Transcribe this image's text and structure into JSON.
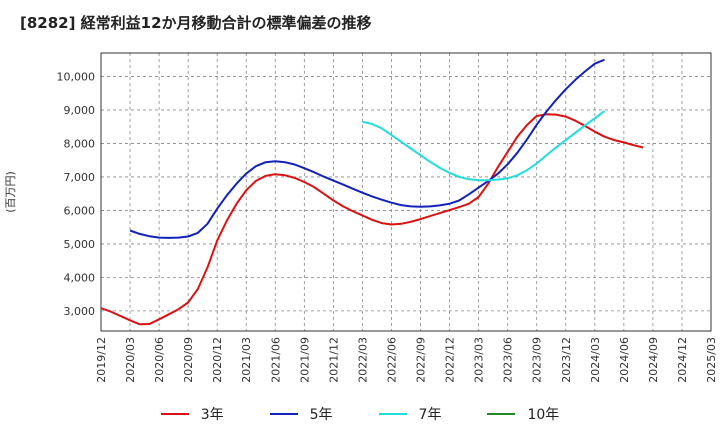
{
  "chart_data": {
    "type": "line",
    "title": "[8282]  経常利益12か月移動合計の標準偏差の推移",
    "ylabel": "(百万円)",
    "xlabel": "",
    "ylim": [
      2400,
      10700
    ],
    "yticks": [
      3000,
      4000,
      5000,
      6000,
      7000,
      8000,
      9000,
      10000
    ],
    "ytick_labels": [
      "3,000",
      "4,000",
      "5,000",
      "6,000",
      "7,000",
      "8,000",
      "9,000",
      "10,000"
    ],
    "xticks": [
      "2019/12",
      "2020/03",
      "2020/06",
      "2020/09",
      "2020/12",
      "2021/03",
      "2021/06",
      "2021/09",
      "2021/12",
      "2022/03",
      "2022/06",
      "2022/09",
      "2022/12",
      "2023/03",
      "2023/06",
      "2023/09",
      "2023/12",
      "2024/03",
      "2024/06",
      "2024/09",
      "2024/12",
      "2025/03"
    ],
    "grid": true,
    "legend_position": "bottom",
    "series": [
      {
        "name": "3年",
        "color": "#dd1111",
        "points": [
          [
            "2019/12",
            3080
          ],
          [
            "2020/01",
            2980
          ],
          [
            "2020/02",
            2850
          ],
          [
            "2020/03",
            2720
          ],
          [
            "2020/04",
            2600
          ],
          [
            "2020/05",
            2610
          ],
          [
            "2020/06",
            2750
          ],
          [
            "2020/07",
            2900
          ],
          [
            "2020/08",
            3050
          ],
          [
            "2020/09",
            3250
          ],
          [
            "2020/10",
            3650
          ],
          [
            "2020/11",
            4300
          ],
          [
            "2020/12",
            5100
          ],
          [
            "2021/01",
            5700
          ],
          [
            "2021/02",
            6200
          ],
          [
            "2021/03",
            6600
          ],
          [
            "2021/04",
            6880
          ],
          [
            "2021/05",
            7030
          ],
          [
            "2021/06",
            7080
          ],
          [
            "2021/07",
            7050
          ],
          [
            "2021/08",
            6970
          ],
          [
            "2021/09",
            6850
          ],
          [
            "2021/10",
            6700
          ],
          [
            "2021/11",
            6500
          ],
          [
            "2021/12",
            6300
          ],
          [
            "2022/01",
            6120
          ],
          [
            "2022/02",
            5980
          ],
          [
            "2022/03",
            5850
          ],
          [
            "2022/04",
            5720
          ],
          [
            "2022/05",
            5620
          ],
          [
            "2022/06",
            5580
          ],
          [
            "2022/07",
            5600
          ],
          [
            "2022/08",
            5660
          ],
          [
            "2022/09",
            5740
          ],
          [
            "2022/10",
            5830
          ],
          [
            "2022/11",
            5920
          ],
          [
            "2022/12",
            6010
          ],
          [
            "2023/01",
            6100
          ],
          [
            "2023/02",
            6200
          ],
          [
            "2023/03",
            6400
          ],
          [
            "2023/04",
            6800
          ],
          [
            "2023/05",
            7300
          ],
          [
            "2023/06",
            7750
          ],
          [
            "2023/07",
            8200
          ],
          [
            "2023/08",
            8550
          ],
          [
            "2023/09",
            8820
          ],
          [
            "2023/10",
            8870
          ],
          [
            "2023/11",
            8860
          ],
          [
            "2023/12",
            8800
          ],
          [
            "2024/01",
            8680
          ],
          [
            "2024/02",
            8520
          ],
          [
            "2024/03",
            8350
          ],
          [
            "2024/04",
            8200
          ],
          [
            "2024/05",
            8100
          ],
          [
            "2024/06",
            8030
          ],
          [
            "2024/07",
            7950
          ],
          [
            "2024/08",
            7880
          ]
        ]
      },
      {
        "name": "5年",
        "color": "#1122bb",
        "points": [
          [
            "2020/03",
            5400
          ],
          [
            "2020/04",
            5300
          ],
          [
            "2020/05",
            5230
          ],
          [
            "2020/06",
            5190
          ],
          [
            "2020/07",
            5180
          ],
          [
            "2020/08",
            5190
          ],
          [
            "2020/09",
            5220
          ],
          [
            "2020/10",
            5330
          ],
          [
            "2020/11",
            5600
          ],
          [
            "2020/12",
            6050
          ],
          [
            "2021/01",
            6450
          ],
          [
            "2021/02",
            6800
          ],
          [
            "2021/03",
            7100
          ],
          [
            "2021/04",
            7320
          ],
          [
            "2021/05",
            7440
          ],
          [
            "2021/06",
            7470
          ],
          [
            "2021/07",
            7440
          ],
          [
            "2021/08",
            7370
          ],
          [
            "2021/09",
            7260
          ],
          [
            "2021/10",
            7140
          ],
          [
            "2021/11",
            7010
          ],
          [
            "2021/12",
            6890
          ],
          [
            "2022/01",
            6770
          ],
          [
            "2022/02",
            6650
          ],
          [
            "2022/03",
            6530
          ],
          [
            "2022/04",
            6420
          ],
          [
            "2022/05",
            6320
          ],
          [
            "2022/06",
            6230
          ],
          [
            "2022/07",
            6160
          ],
          [
            "2022/08",
            6120
          ],
          [
            "2022/09",
            6110
          ],
          [
            "2022/10",
            6120
          ],
          [
            "2022/11",
            6150
          ],
          [
            "2022/12",
            6200
          ],
          [
            "2023/01",
            6300
          ],
          [
            "2023/02",
            6480
          ],
          [
            "2023/03",
            6680
          ],
          [
            "2023/04",
            6880
          ],
          [
            "2023/05",
            7100
          ],
          [
            "2023/06",
            7380
          ],
          [
            "2023/07",
            7720
          ],
          [
            "2023/08",
            8120
          ],
          [
            "2023/09",
            8560
          ],
          [
            "2023/10",
            8950
          ],
          [
            "2023/11",
            9300
          ],
          [
            "2023/12",
            9620
          ],
          [
            "2024/01",
            9900
          ],
          [
            "2024/02",
            10150
          ],
          [
            "2024/03",
            10380
          ],
          [
            "2024/04",
            10500
          ]
        ]
      },
      {
        "name": "7年",
        "color": "#22dddd",
        "points": [
          [
            "2022/03",
            8650
          ],
          [
            "2022/04",
            8580
          ],
          [
            "2022/05",
            8450
          ],
          [
            "2022/06",
            8250
          ],
          [
            "2022/07",
            8050
          ],
          [
            "2022/08",
            7850
          ],
          [
            "2022/09",
            7650
          ],
          [
            "2022/10",
            7450
          ],
          [
            "2022/11",
            7270
          ],
          [
            "2022/12",
            7120
          ],
          [
            "2023/01",
            7000
          ],
          [
            "2023/02",
            6930
          ],
          [
            "2023/03",
            6900
          ],
          [
            "2023/04",
            6900
          ],
          [
            "2023/05",
            6920
          ],
          [
            "2023/06",
            6960
          ],
          [
            "2023/07",
            7050
          ],
          [
            "2023/08",
            7200
          ],
          [
            "2023/09",
            7400
          ],
          [
            "2023/10",
            7650
          ],
          [
            "2023/11",
            7880
          ],
          [
            "2023/12",
            8100
          ],
          [
            "2024/01",
            8320
          ],
          [
            "2024/02",
            8540
          ],
          [
            "2024/03",
            8750
          ],
          [
            "2024/04",
            8970
          ]
        ]
      },
      {
        "name": "10年",
        "color": "#228822",
        "points": []
      }
    ]
  }
}
